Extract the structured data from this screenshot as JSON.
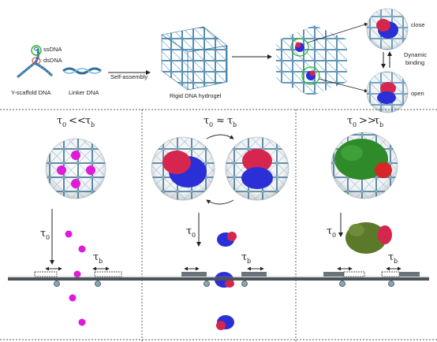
{
  "top": {
    "ssdna": "ssDNA",
    "dsdna": "dsDNA",
    "y_scaffold": "Y-scaffold DNA",
    "linker": "Linker DNA",
    "self_assembly": "Self-assembly",
    "rigid_hydrogel": "Rigid DNA hydrogel",
    "close": "close",
    "open": "open",
    "dynamic": "Dynamic",
    "binding": "binding"
  },
  "panels": [
    {
      "tau_main": "τ",
      "sub_left": "0",
      "relation": "<<",
      "sub_right": "b"
    },
    {
      "tau_main": "τ",
      "sub_left": "0",
      "relation": "≈",
      "sub_right": "b"
    },
    {
      "tau_main": "τ",
      "sub_left": "0",
      "relation": ">>",
      "sub_right": "b"
    }
  ],
  "axis_symbols": {
    "tau": "τ",
    "sub0": "0",
    "subb": "b"
  },
  "colors": {
    "dna": "#2f6f9a",
    "dna_light": "#7ab7d6",
    "magenta": "#e01ad8",
    "protein_red": "#d6264e",
    "protein_blue": "#2a2fd6",
    "protein_green": "#2f8a2a",
    "olive": "#5a7a2a",
    "rail": "#4a5459"
  }
}
